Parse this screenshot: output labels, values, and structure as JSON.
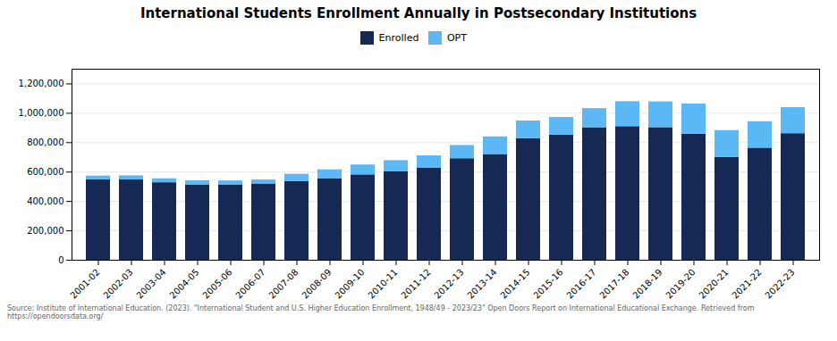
{
  "chart_data": {
    "type": "bar",
    "stacked": true,
    "title": "International Students Enrollment Annually in Postsecondary Institutions",
    "source": "Source: Institute of International Education. (2023). \"International Student and U.S. Higher Education Enrollment, 1948/49 - 2023/23\" Open Doors Report on International Educational Exchange. Retrieved from\nhttps://opendoorsdata.org/",
    "categories": [
      "2001-02",
      "2002-03",
      "2003-04",
      "2004-05",
      "2005-06",
      "2006-07",
      "2007-08",
      "2008-09",
      "2009-10",
      "2010-11",
      "2011-12",
      "2012-13",
      "2013-14",
      "2014-15",
      "2015-16",
      "2016-17",
      "2017-18",
      "2018-19",
      "2019-20",
      "2020-21",
      "2021-22",
      "2022-23"
    ],
    "series": [
      {
        "name": "Enrolled",
        "color": "#162955",
        "values": [
          547867,
          546496,
          527486,
          512707,
          512807,
          519180,
          535969,
          555283,
          581056,
          601821,
          625539,
          690923,
          719468,
          827547,
          851516,
          901748,
          909230,
          902461,
          858052,
          700205,
          762776,
          861384
        ]
      },
      {
        "name": "OPT",
        "color": "#5bb8f5",
        "values": [
          25000,
          28000,
          27000,
          28000,
          27000,
          27000,
          48904,
          60000,
          67000,
          76000,
          85000,
          90000,
          120000,
          120000,
          120000,
          130000,
          170000,
          175000,
          205000,
          182000,
          180000,
          177000
        ]
      }
    ],
    "ylim": [
      0,
      1300000
    ],
    "yticks": [
      0,
      {
        "value": 200000,
        "label": "200,000"
      },
      {
        "value": 400000,
        "label": "400,000"
      },
      {
        "value": 600000,
        "label": "600,000"
      },
      {
        "value": 800000,
        "label": "800,000"
      },
      {
        "value": 1000000,
        "label": "1,000,000"
      },
      {
        "value": 1200000,
        "label": "1,200,000"
      }
    ],
    "grid": true,
    "legend": "top"
  }
}
